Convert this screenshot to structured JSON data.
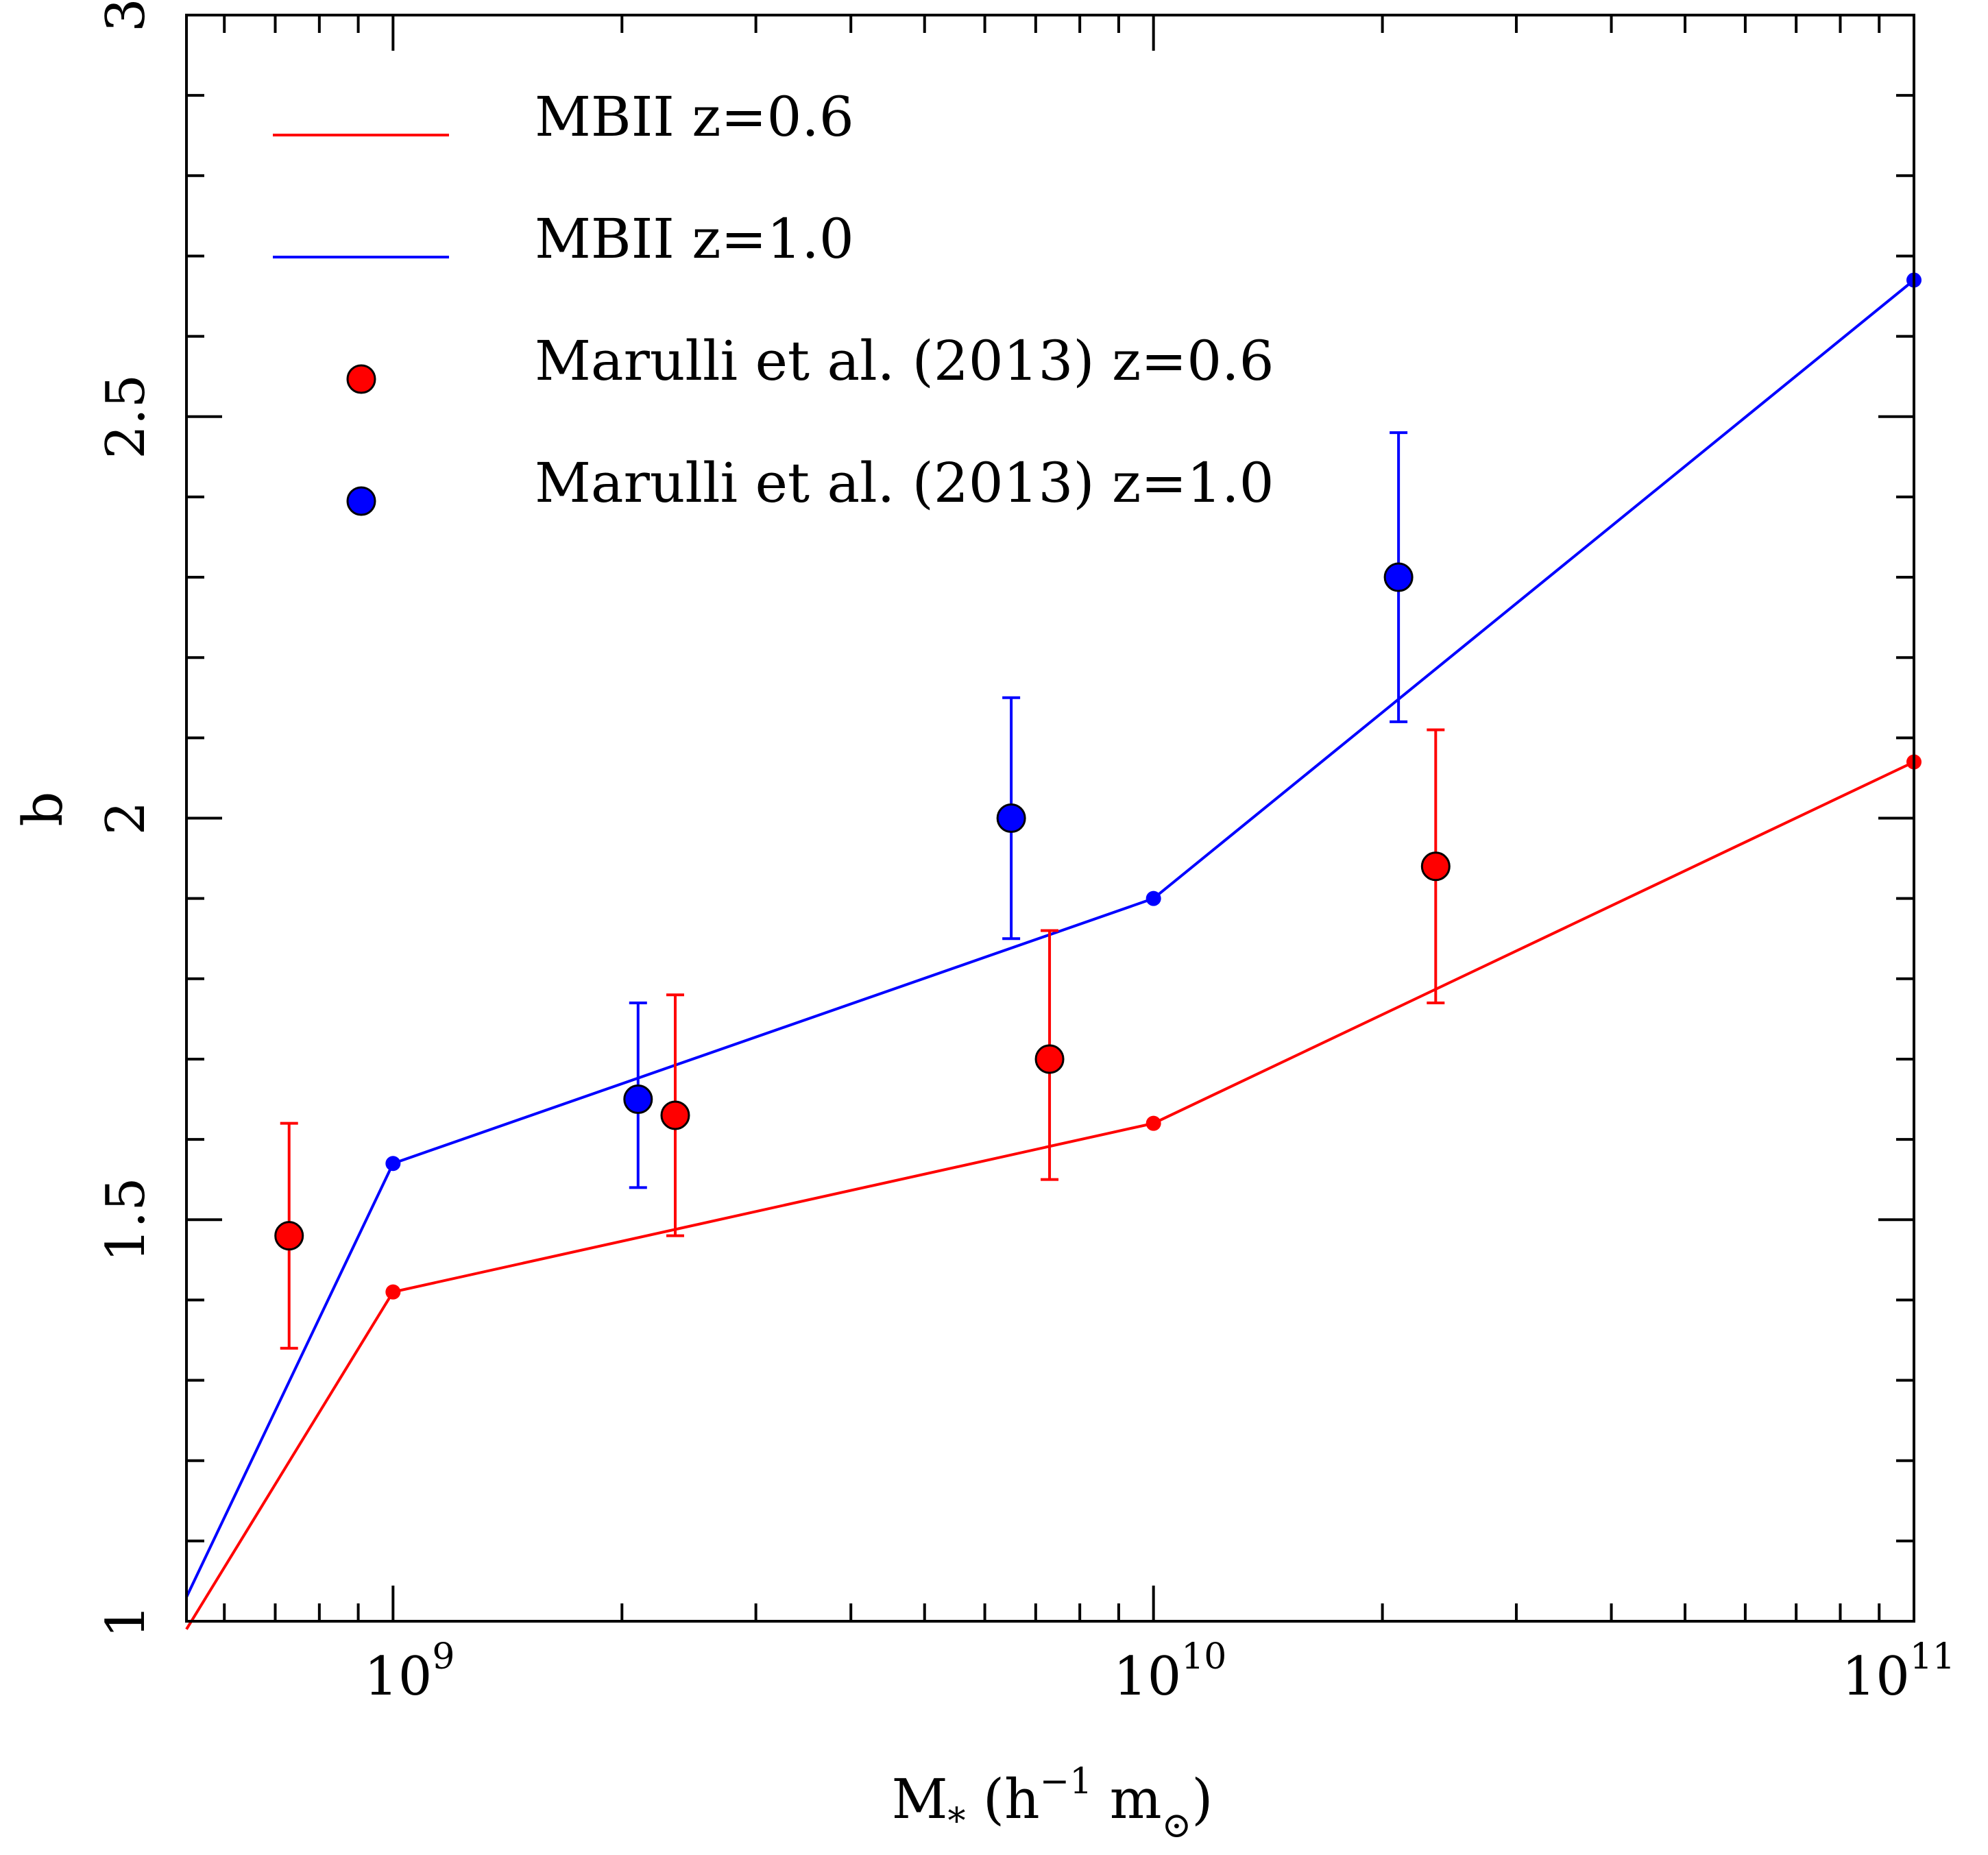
{
  "chart_data": {
    "type": "line",
    "xlabel": {
      "main": "M",
      "sub": "*",
      "paren_open": " (h",
      "exp": "−1",
      "unit": " m",
      "unit_sub": "⊙",
      "paren_close": ")"
    },
    "ylabel": "b",
    "x_scale": "log",
    "xlim": [
      535000000.0,
      100000000000.0
    ],
    "ylim": [
      1,
      3
    ],
    "x_ticks": [
      {
        "value": 1000000000.0,
        "base": "10",
        "exp": "9"
      },
      {
        "value": 10000000000.0,
        "base": "10",
        "exp": "10"
      },
      {
        "value": 100000000000.0,
        "base": "10",
        "exp": "11"
      }
    ],
    "y_ticks": [
      {
        "value": 1,
        "label": "1"
      },
      {
        "value": 1.5,
        "label": "1.5"
      },
      {
        "value": 2,
        "label": "2"
      },
      {
        "value": 2.5,
        "label": "2.5"
      },
      {
        "value": 3,
        "label": "3"
      }
    ],
    "legend_position": "top-left",
    "series": [
      {
        "name": "MBII z=0.6",
        "kind": "line",
        "color": "#ff0000",
        "points": [
          [
            535000000.0,
            0.99
          ],
          [
            1000000000.0,
            1.41
          ],
          [
            10000000000.0,
            1.62
          ],
          [
            100000000000.0,
            2.07
          ]
        ]
      },
      {
        "name": "MBII z=1.0",
        "kind": "line",
        "color": "#0000ff",
        "points": [
          [
            535000000.0,
            1.03
          ],
          [
            1000000000.0,
            1.57
          ],
          [
            10000000000.0,
            1.9
          ],
          [
            100000000000.0,
            2.67
          ]
        ]
      },
      {
        "name": "Marulli et al. (2013) z=0.6",
        "kind": "scatter",
        "color": "#ff0000",
        "points": [
          {
            "x": 730000000.0,
            "y": 1.48,
            "yerr_low": 1.34,
            "yerr_high": 1.62
          },
          {
            "x": 2350000000.0,
            "y": 1.63,
            "yerr_low": 1.48,
            "yerr_high": 1.78
          },
          {
            "x": 7300000000.0,
            "y": 1.7,
            "yerr_low": 1.55,
            "yerr_high": 1.86
          },
          {
            "x": 23500000000.0,
            "y": 1.94,
            "yerr_low": 1.77,
            "yerr_high": 2.11
          }
        ]
      },
      {
        "name": "Marulli et al. (2013) z=1.0",
        "kind": "scatter",
        "color": "#0000ff",
        "points": [
          {
            "x": 2100000000.0,
            "y": 1.65,
            "yerr_low": 1.54,
            "yerr_high": 1.77
          },
          {
            "x": 6500000000.0,
            "y": 2.0,
            "yerr_low": 1.85,
            "yerr_high": 2.15
          },
          {
            "x": 21000000000.0,
            "y": 2.3,
            "yerr_low": 2.12,
            "yerr_high": 2.48
          }
        ]
      }
    ]
  }
}
